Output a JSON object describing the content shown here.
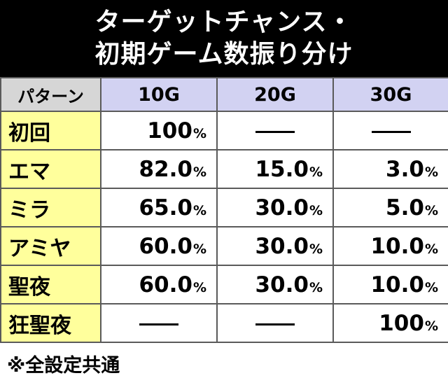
{
  "title": {
    "line1": "ターゲットチャンス・",
    "line2": "初期ゲーム数振り分け"
  },
  "table": {
    "corner_label": "パターン",
    "columns": [
      "10G",
      "20G",
      "30G"
    ],
    "percent_sign": "%",
    "rows": [
      {
        "pattern": "初回",
        "cells": [
          {
            "value": "100",
            "dash": false
          },
          {
            "value": "",
            "dash": true
          },
          {
            "value": "",
            "dash": true
          }
        ]
      },
      {
        "pattern": "エマ",
        "cells": [
          {
            "value": "82.0",
            "dash": false
          },
          {
            "value": "15.0",
            "dash": false
          },
          {
            "value": "3.0",
            "dash": false
          }
        ]
      },
      {
        "pattern": "ミラ",
        "cells": [
          {
            "value": "65.0",
            "dash": false
          },
          {
            "value": "30.0",
            "dash": false
          },
          {
            "value": "5.0",
            "dash": false
          }
        ]
      },
      {
        "pattern": "アミヤ",
        "cells": [
          {
            "value": "60.0",
            "dash": false
          },
          {
            "value": "30.0",
            "dash": false
          },
          {
            "value": "10.0",
            "dash": false
          }
        ]
      },
      {
        "pattern": "聖夜",
        "cells": [
          {
            "value": "60.0",
            "dash": false
          },
          {
            "value": "30.0",
            "dash": false
          },
          {
            "value": "10.0",
            "dash": false
          }
        ]
      },
      {
        "pattern": "狂聖夜",
        "cells": [
          {
            "value": "",
            "dash": true
          },
          {
            "value": "",
            "dash": true
          },
          {
            "value": "100",
            "dash": false
          }
        ]
      }
    ]
  },
  "footnote": "※全設定共通",
  "colors": {
    "title_bg": "#000000",
    "header_bg": "#d2d2f2",
    "corner_bg": "#d6d6d6",
    "pattern_bg": "#ffff9c",
    "border": "#5a5a5a"
  }
}
